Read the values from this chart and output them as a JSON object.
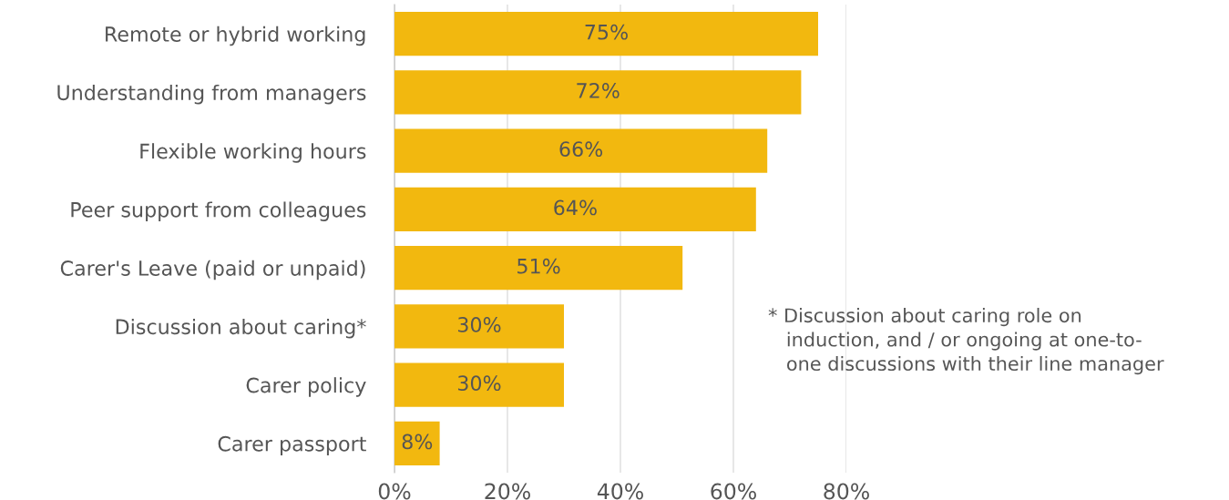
{
  "chart_data": {
    "type": "bar",
    "orientation": "horizontal",
    "categories": [
      "Remote or hybrid working",
      "Understanding from managers",
      "Flexible working hours",
      "Peer support from colleagues",
      "Carer's Leave (paid or unpaid)",
      "Discussion about caring*",
      "Carer policy",
      "Carer passport"
    ],
    "values": [
      75,
      72,
      66,
      64,
      51,
      30,
      30,
      8
    ],
    "value_labels": [
      "75%",
      "72%",
      "66%",
      "64%",
      "51%",
      "30%",
      "30%",
      "8%"
    ],
    "color": "#f2b80f",
    "xlim": [
      0,
      80
    ],
    "xticks": [
      {
        "value": 0,
        "label": "0%"
      },
      {
        "value": 20,
        "label": "20%"
      },
      {
        "value": 40,
        "label": "40%"
      },
      {
        "value": 60,
        "label": "60%"
      },
      {
        "value": 80,
        "label": "80%"
      }
    ],
    "grid": "x",
    "annotations": [
      "* Discussion about caring role on\n   induction, and / or ongoing at one-to-\n   one discussions with their line manager"
    ]
  }
}
